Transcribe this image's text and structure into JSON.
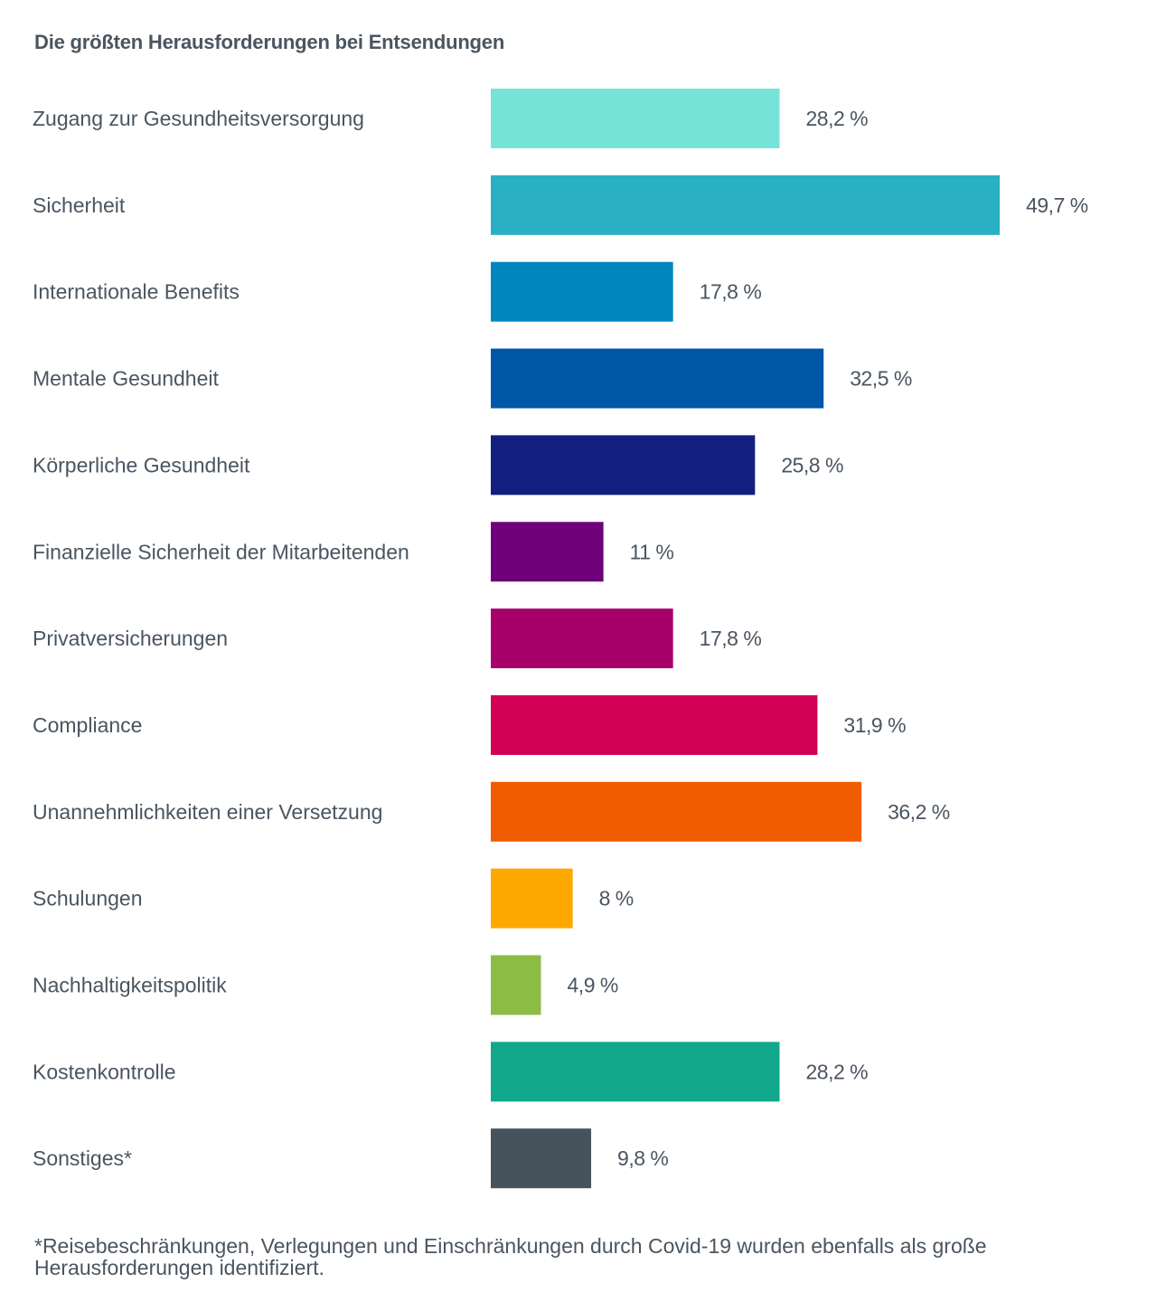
{
  "chart_title": "Die größten Herausforderungen bei Entsendungen",
  "footnote": "*Reisebeschränkungen, Verlegungen und Einschränkungen durch Covid-19 wurden ebenfalls als große Herausforderungen identifiziert.",
  "chart_data": {
    "type": "bar",
    "orientation": "horizontal",
    "title": "Die größten Herausforderungen bei Entsendungen",
    "xlabel": "",
    "ylabel": "",
    "xlim": [
      0,
      50
    ],
    "grid": false,
    "legend": "none",
    "categories": [
      "Zugang zur Gesundheitsversorgung",
      "Sicherheit",
      "Internationale Benefits",
      "Mentale Gesundheit",
      "Körperliche Gesundheit",
      "Finanzielle Sicherheit der Mitarbeitenden",
      "Privatversicherungen",
      "Compliance",
      "Unannehmlichkeiten einer Versetzung",
      "Schulungen",
      "Nachhaltigkeitspolitik",
      "Kostenkontrolle",
      "Sonstiges*"
    ],
    "values": [
      28.2,
      49.7,
      17.8,
      32.5,
      25.8,
      11,
      17.8,
      31.9,
      36.2,
      8,
      4.9,
      28.2,
      9.8
    ],
    "value_labels": [
      "28,2 %",
      "49,7 %",
      "17,8 %",
      "32,5 %",
      "25,8 %",
      "11 %",
      "17,8 %",
      "31,9 %",
      "36,2 %",
      "8 %",
      "4,9 %",
      "28,2 %",
      "9,8 %"
    ],
    "colors": [
      "#76e3d9",
      "#29b0c3",
      "#0085bd",
      "#0057a8",
      "#121f7f",
      "#6e007a",
      "#a8006b",
      "#d20055",
      "#f25c00",
      "#fda800",
      "#8cbc44",
      "#12a88b",
      "#46525c"
    ]
  }
}
